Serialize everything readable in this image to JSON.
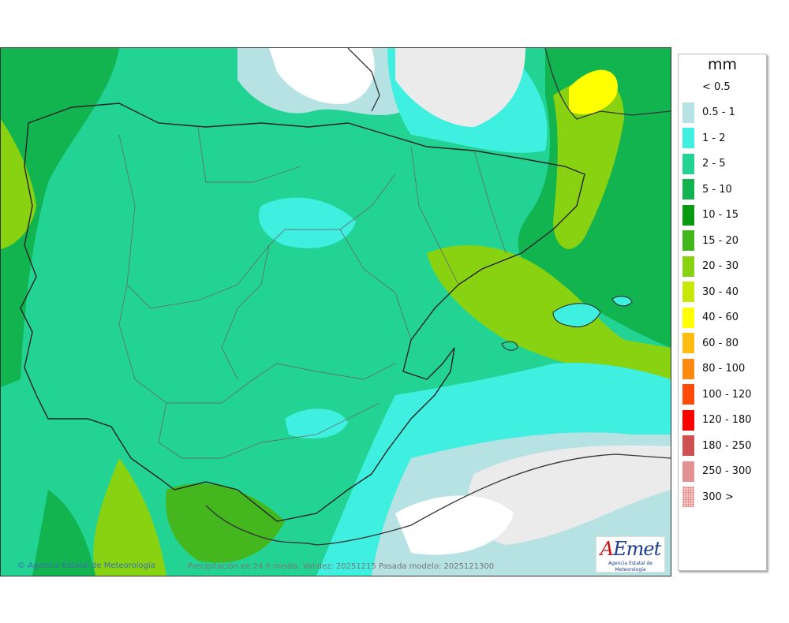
{
  "unit": "mm",
  "legend": [
    {
      "label": "< 0.5",
      "color": "#ffffff"
    },
    {
      "label": "0.5 - 1",
      "color": "#b7e2e4"
    },
    {
      "label": "1 - 2",
      "color": "#3ff0e0"
    },
    {
      "label": "2 - 5",
      "color": "#22d394"
    },
    {
      "label": "5 - 10",
      "color": "#12b450"
    },
    {
      "label": "10 - 15",
      "color": "#0a9a12"
    },
    {
      "label": "15 - 20",
      "color": "#45b71e"
    },
    {
      "label": "20 - 30",
      "color": "#88d212"
    },
    {
      "label": "30 - 40",
      "color": "#c8e80c"
    },
    {
      "label": "40 - 60",
      "color": "#ffff00"
    },
    {
      "label": "60 - 80",
      "color": "#ffbd14"
    },
    {
      "label": "80 - 100",
      "color": "#ff8a12"
    },
    {
      "label": "100 - 120",
      "color": "#ff4a08"
    },
    {
      "label": "120 - 180",
      "color": "#ff0000"
    },
    {
      "label": "180 - 250",
      "color": "#cd5150"
    },
    {
      "label": "250 - 300",
      "color": "#e39293"
    },
    {
      "label": "300 >",
      "color": "#f7c8c8",
      "pattern": "dotted"
    }
  ],
  "credit": "Agencia Estatal de Meteorología",
  "caption": "Precipitación en 24 h media. Validez: 20251215 Pasada modelo: 2025121300",
  "logo": {
    "text_a": "A",
    "text_rest": "Emet",
    "sub": "Agencia Estatal de Meteorología"
  }
}
